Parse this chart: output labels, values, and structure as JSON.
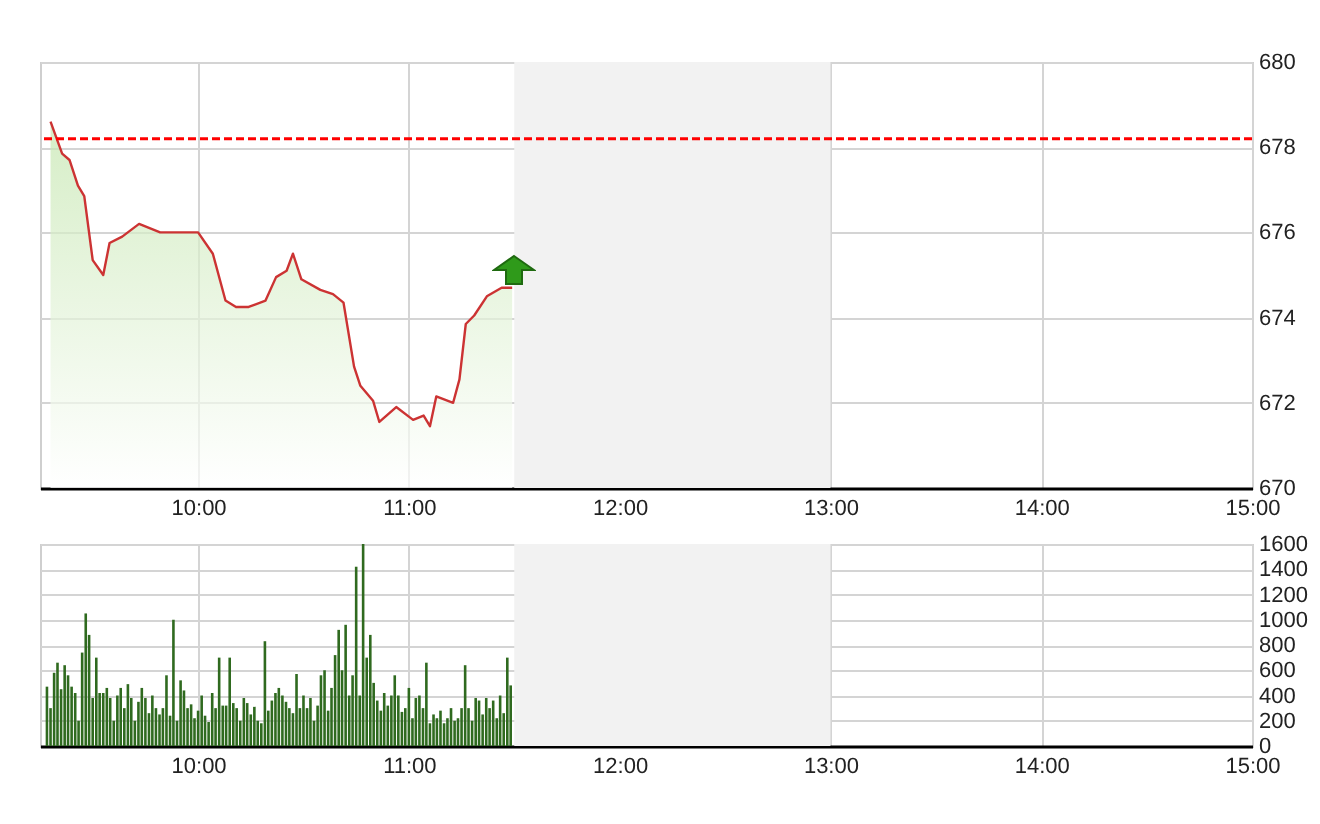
{
  "chart_data": [
    {
      "type": "area",
      "x": [
        9.3,
        9.355,
        9.39,
        9.43,
        9.46,
        9.5,
        9.55,
        9.58,
        9.64,
        9.72,
        9.82,
        9.94,
        10.0,
        10.07,
        10.13,
        10.18,
        10.24,
        10.32,
        10.37,
        10.42,
        10.45,
        10.49,
        10.58,
        10.64,
        10.69,
        10.74,
        10.77,
        10.83,
        10.86,
        10.94,
        11.02,
        11.07,
        11.1,
        11.13,
        11.21,
        11.24,
        11.27,
        11.31,
        11.37,
        11.44,
        11.49
      ],
      "series": [
        {
          "color": "#cc3333",
          "values": [
            678.6,
            677.85,
            677.7,
            677.1,
            676.85,
            675.35,
            675.0,
            675.75,
            675.9,
            676.2,
            676.0,
            676.0,
            676.0,
            675.5,
            674.4,
            674.25,
            674.25,
            674.4,
            674.95,
            675.1,
            675.5,
            674.9,
            674.65,
            674.55,
            674.35,
            672.85,
            672.4,
            672.05,
            671.55,
            671.9,
            671.6,
            671.7,
            671.45,
            672.15,
            672.0,
            672.55,
            673.85,
            674.05,
            674.5,
            674.7,
            674.7
          ]
        }
      ],
      "xlim": [
        9.25,
        15
      ],
      "xticks": [
        {
          "value": 10,
          "label": "10:00"
        },
        {
          "value": 11,
          "label": "11:00"
        },
        {
          "value": 12,
          "label": "12:00"
        },
        {
          "value": 13,
          "label": "13:00"
        },
        {
          "value": 14,
          "label": "14:00"
        },
        {
          "value": 15,
          "label": "15:00"
        }
      ],
      "ylim": [
        670,
        680
      ],
      "yticks": [
        670,
        672,
        674,
        676,
        678,
        680
      ],
      "grid": true,
      "ref_lines": [
        {
          "axis": "y",
          "value": 678.2,
          "color": "#ff0000",
          "line_style": "dashed"
        }
      ],
      "bands": [
        {
          "axis": "x",
          "from": 11.5,
          "to": 13,
          "color": "#f2f2f2"
        }
      ]
    },
    {
      "type": "bar",
      "color": "#2f6a1f",
      "x": [
        9.283,
        9.3,
        9.317,
        9.333,
        9.35,
        9.367,
        9.383,
        9.4,
        9.417,
        9.433,
        9.45,
        9.467,
        9.483,
        9.5,
        9.517,
        9.533,
        9.55,
        9.567,
        9.583,
        9.6,
        9.617,
        9.633,
        9.65,
        9.667,
        9.683,
        9.7,
        9.717,
        9.733,
        9.75,
        9.767,
        9.783,
        9.8,
        9.817,
        9.833,
        9.85,
        9.867,
        9.883,
        9.9,
        9.917,
        9.933,
        9.95,
        9.967,
        9.983,
        10,
        10.017,
        10.033,
        10.05,
        10.067,
        10.083,
        10.1,
        10.117,
        10.133,
        10.15,
        10.167,
        10.183,
        10.2,
        10.217,
        10.233,
        10.25,
        10.267,
        10.283,
        10.3,
        10.317,
        10.333,
        10.35,
        10.367,
        10.383,
        10.4,
        10.417,
        10.433,
        10.45,
        10.467,
        10.483,
        10.5,
        10.517,
        10.533,
        10.55,
        10.567,
        10.583,
        10.6,
        10.617,
        10.633,
        10.65,
        10.667,
        10.683,
        10.7,
        10.717,
        10.733,
        10.75,
        10.767,
        10.783,
        10.8,
        10.817,
        10.833,
        10.85,
        10.867,
        10.883,
        10.9,
        10.917,
        10.933,
        10.95,
        10.967,
        10.983,
        11,
        11.017,
        11.033,
        11.05,
        11.067,
        11.083,
        11.1,
        11.117,
        11.133,
        11.15,
        11.167,
        11.183,
        11.2,
        11.217,
        11.233,
        11.25,
        11.267,
        11.283,
        11.3,
        11.317,
        11.333,
        11.35,
        11.367,
        11.383,
        11.4,
        11.417,
        11.433,
        11.45,
        11.467,
        11.483
      ],
      "values": [
        470,
        300,
        580,
        660,
        450,
        640,
        560,
        470,
        420,
        200,
        740,
        1050,
        880,
        380,
        700,
        420,
        420,
        460,
        380,
        200,
        400,
        460,
        300,
        490,
        380,
        200,
        350,
        460,
        380,
        260,
        400,
        300,
        250,
        300,
        560,
        240,
        1000,
        200,
        520,
        440,
        300,
        330,
        220,
        280,
        400,
        240,
        190,
        420,
        300,
        700,
        320,
        320,
        700,
        340,
        300,
        200,
        380,
        340,
        250,
        310,
        200,
        180,
        830,
        280,
        360,
        420,
        460,
        400,
        350,
        300,
        260,
        570,
        300,
        400,
        300,
        380,
        200,
        320,
        560,
        600,
        280,
        460,
        720,
        920,
        600,
        960,
        400,
        560,
        1420,
        400,
        1600,
        700,
        880,
        500,
        360,
        280,
        420,
        320,
        400,
        560,
        400,
        270,
        300,
        460,
        220,
        380,
        400,
        300,
        660,
        180,
        250,
        220,
        280,
        180,
        220,
        300,
        200,
        220,
        300,
        640,
        300,
        200,
        380,
        360,
        250,
        380,
        300,
        360,
        220,
        400,
        260,
        700,
        480
      ],
      "xlim": [
        9.25,
        15
      ],
      "xticks": [
        {
          "value": 10,
          "label": "10:00"
        },
        {
          "value": 11,
          "label": "11:00"
        },
        {
          "value": 12,
          "label": "12:00"
        },
        {
          "value": 13,
          "label": "13:00"
        },
        {
          "value": 14,
          "label": "14:00"
        },
        {
          "value": 15,
          "label": "15:00"
        }
      ],
      "ylim": [
        0,
        1600
      ],
      "yticks": [
        0,
        200,
        400,
        600,
        800,
        1000,
        1200,
        1400,
        1600
      ],
      "grid": true,
      "bands": [
        {
          "axis": "x",
          "from": 11.5,
          "to": 13,
          "color": "#f2f2f2"
        }
      ]
    }
  ]
}
